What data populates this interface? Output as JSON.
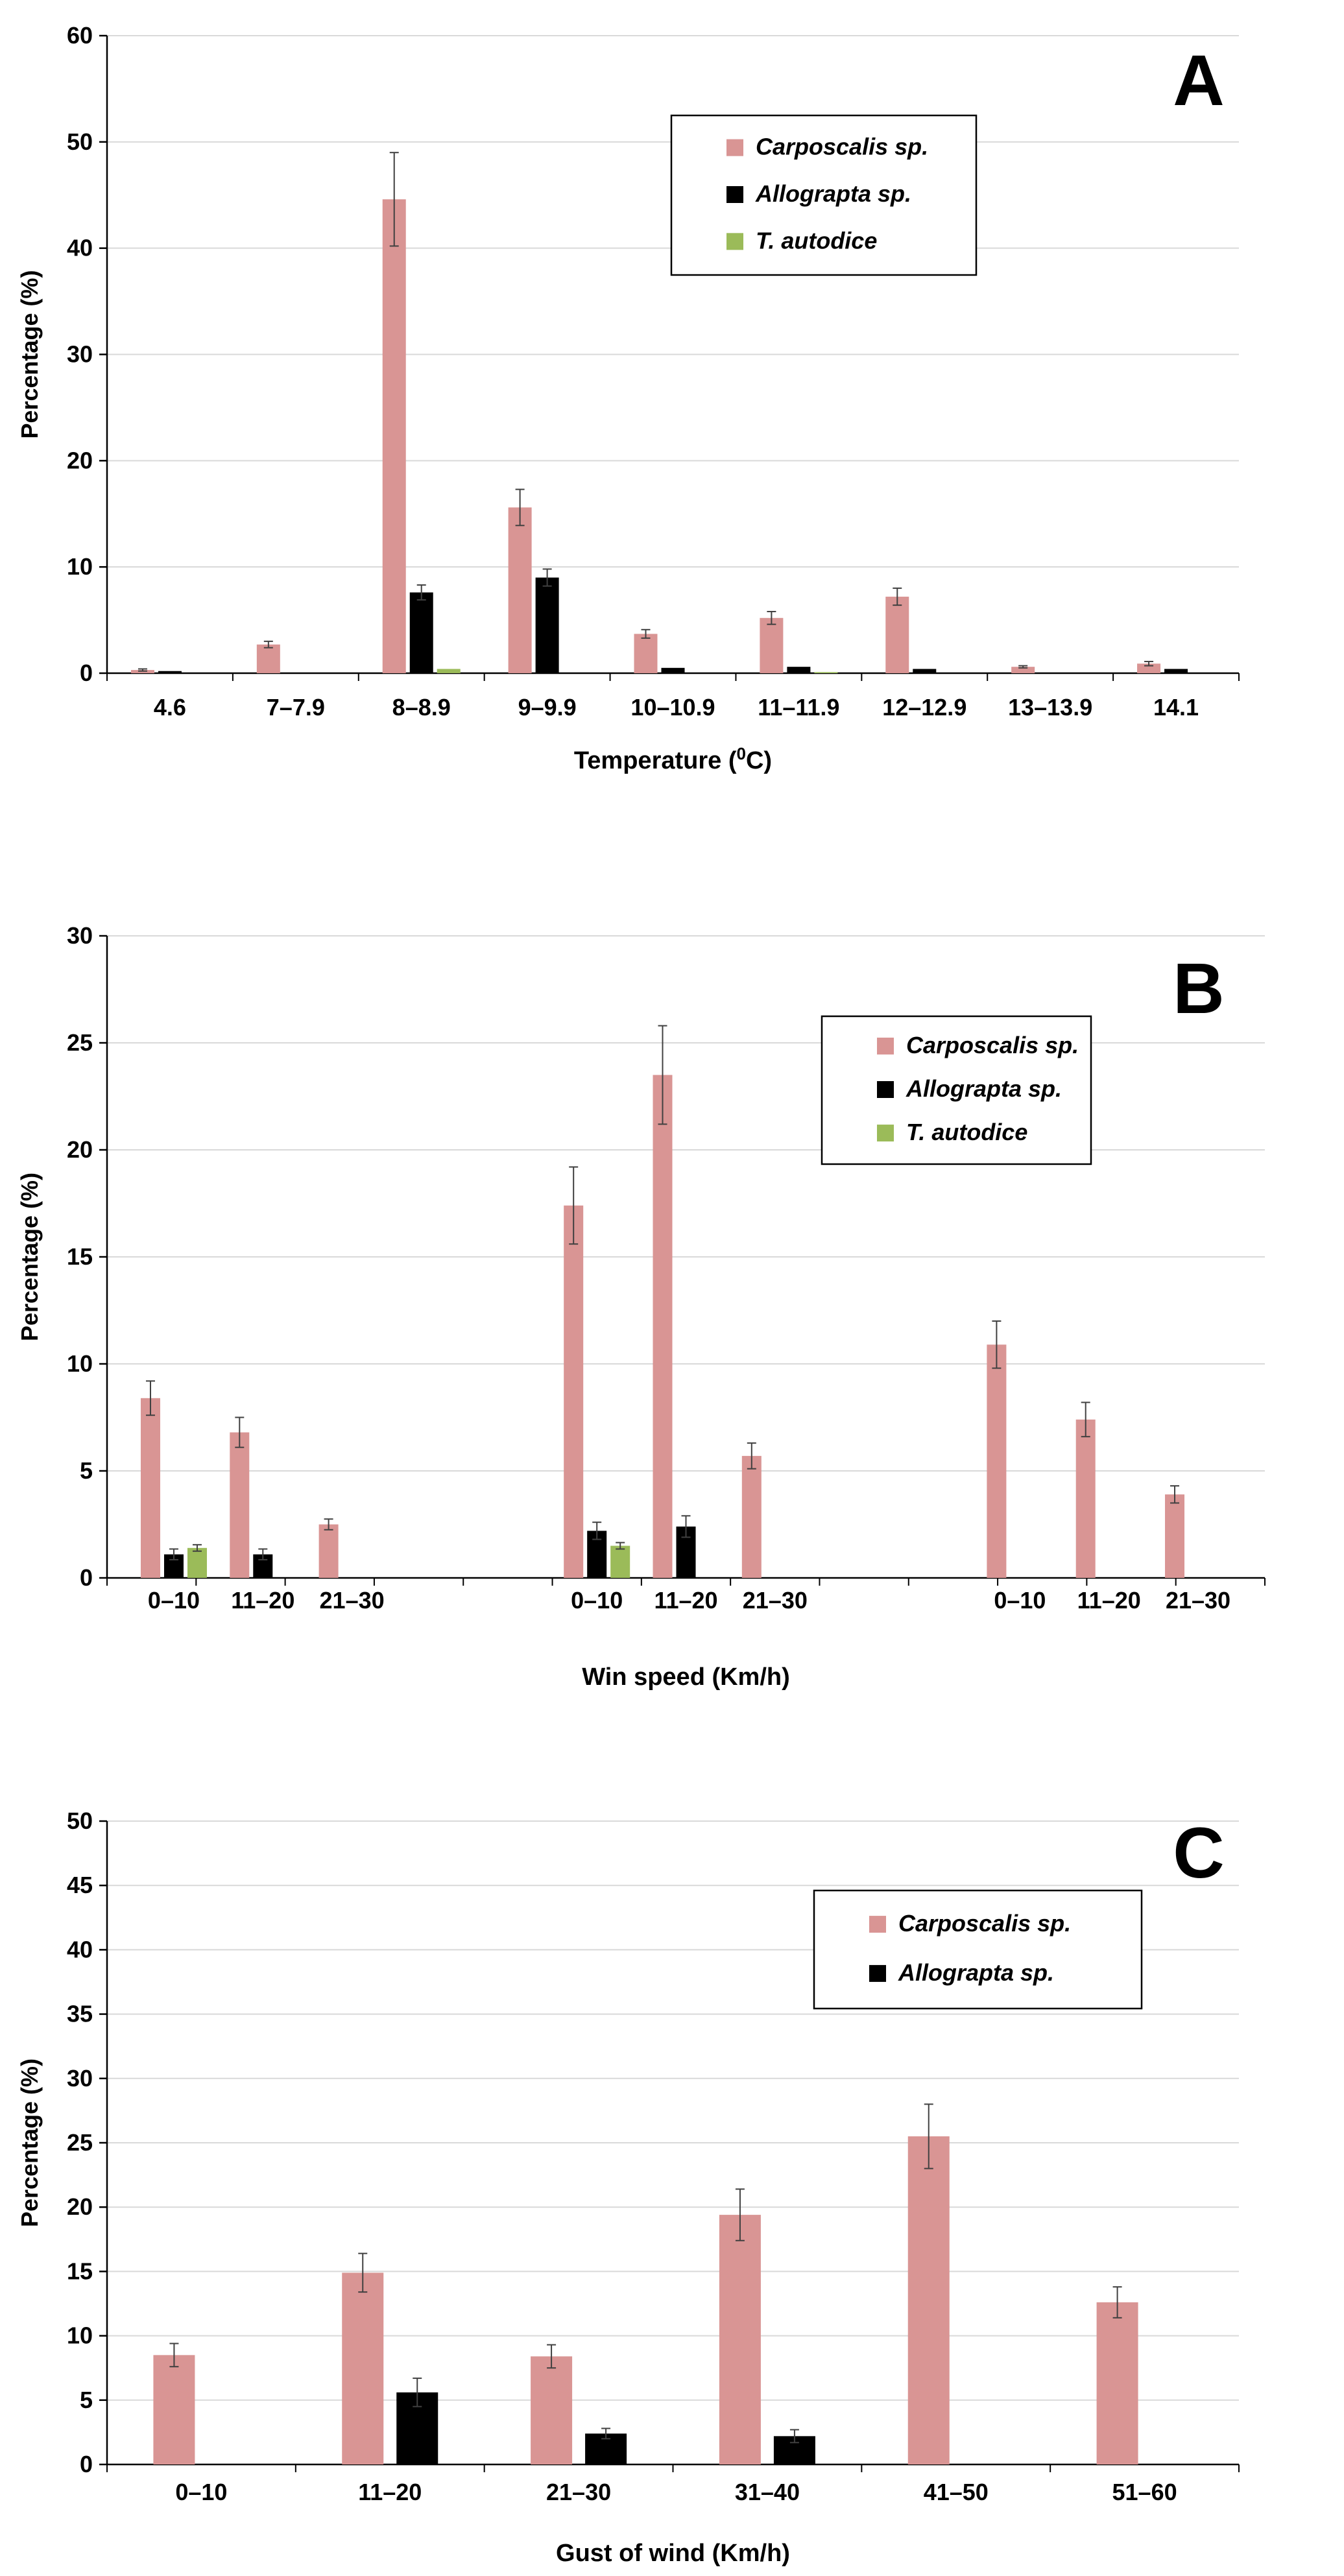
{
  "colors": {
    "carposcalis": "#D99594",
    "allograpta": "#000000",
    "t_autodice": "#9BBB59",
    "grid": "#D9D9D9",
    "axis": "#000000",
    "errorbar": "#404040"
  },
  "chart_data": [
    {
      "type": "bar",
      "panel_letter": "A",
      "xlabel_main": "Temperature (",
      "xlabel_sup": "0",
      "xlabel_tail": "C)",
      "ylabel": "Percentage (%)",
      "ylim": [
        0,
        60
      ],
      "yticks": [
        0,
        10,
        20,
        30,
        40,
        50,
        60
      ],
      "grid": true,
      "legend_position": "top-right",
      "categories": [
        "4.6",
        "7–7.9",
        "8–8.9",
        "9–9.9",
        "10–10.9",
        "11–11.9",
        "12–12.9",
        "13–13.9",
        "14.1"
      ],
      "series": [
        {
          "name": "Carposcalis sp.",
          "values": [
            0.3,
            2.7,
            44.6,
            15.6,
            3.7,
            5.2,
            7.2,
            0.6,
            0.9
          ],
          "errors": [
            0.1,
            0.3,
            4.4,
            1.7,
            0.4,
            0.6,
            0.8,
            0.1,
            0.2
          ]
        },
        {
          "name": "Allograpta sp.",
          "values": [
            0.2,
            0,
            7.6,
            9.0,
            0.5,
            0.6,
            0.4,
            0,
            0.4
          ],
          "errors": [
            0,
            0,
            0.7,
            0.8,
            0,
            0,
            0,
            0,
            0
          ]
        },
        {
          "name": "T. autodice",
          "values": [
            0,
            0,
            0.4,
            0,
            0,
            0.1,
            0,
            0,
            0
          ],
          "errors": [
            0,
            0,
            0,
            0,
            0,
            0,
            0,
            0,
            0
          ]
        }
      ]
    },
    {
      "type": "bar",
      "panel_letter": "B",
      "xlabel": "Win speed (Km/h)",
      "ylabel": "Percentage (%)",
      "ylim": [
        0,
        30
      ],
      "yticks": [
        0,
        5,
        10,
        15,
        20,
        25,
        30
      ],
      "grid": true,
      "legend_position": "top-right",
      "categories": [
        "0–10",
        "11–20",
        "21–30",
        "0–10",
        "11–20",
        "21–30",
        "0–10",
        "11–20",
        "21–30"
      ],
      "series": [
        {
          "name": "Carposcalis sp.",
          "values": [
            8.4,
            6.8,
            2.5,
            17.4,
            23.5,
            5.7,
            10.9,
            7.4,
            3.9
          ],
          "errors": [
            0.8,
            0.7,
            0.25,
            1.8,
            2.3,
            0.6,
            1.1,
            0.8,
            0.4
          ]
        },
        {
          "name": "Allograpta sp.",
          "values": [
            1.1,
            1.1,
            0,
            2.2,
            2.4,
            0,
            0,
            0,
            0
          ],
          "errors": [
            0.25,
            0.25,
            0,
            0.4,
            0.5,
            0,
            0,
            0,
            0
          ]
        },
        {
          "name": "T. autodice",
          "values": [
            1.4,
            0,
            0,
            1.5,
            0,
            0,
            0,
            0,
            0
          ],
          "errors": [
            0.15,
            0,
            0,
            0.15,
            0,
            0,
            0,
            0,
            0
          ]
        }
      ]
    },
    {
      "type": "bar",
      "panel_letter": "C",
      "xlabel": "Gust of wind (Km/h)",
      "ylabel": "Percentage (%)",
      "ylim": [
        0,
        50
      ],
      "yticks": [
        0,
        5,
        10,
        15,
        20,
        25,
        30,
        35,
        40,
        45,
        50
      ],
      "grid": true,
      "legend_position": "top-right",
      "categories": [
        "0–10",
        "11–20",
        "21–30",
        "31–40",
        "41–50",
        "51–60"
      ],
      "series": [
        {
          "name": "Carposcalis sp.",
          "values": [
            8.5,
            14.9,
            8.4,
            19.4,
            25.5,
            12.6
          ],
          "errors": [
            0.9,
            1.5,
            0.9,
            2.0,
            2.5,
            1.2
          ]
        },
        {
          "name": "Allograpta sp.",
          "values": [
            0,
            5.6,
            2.4,
            2.2,
            0,
            0
          ],
          "errors": [
            0,
            1.1,
            0.4,
            0.5,
            0,
            0
          ]
        }
      ]
    }
  ]
}
